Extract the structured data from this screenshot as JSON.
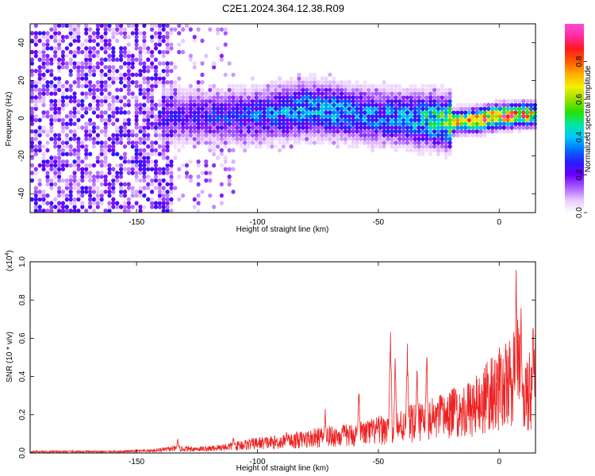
{
  "title": "C2E1.2024.364.12.38.R09",
  "chart_data": [
    {
      "type": "heatmap",
      "xlabel": "Height of straight line (km)",
      "ylabel": "Frequency (Hz)",
      "xlim": [
        -194,
        15
      ],
      "ylim": [
        -50,
        50
      ],
      "x_ticks": [
        -150,
        -100,
        -50,
        0
      ],
      "y_ticks": [
        -40,
        -20,
        0,
        20,
        40
      ],
      "colorbar": {
        "label": "Normalized spectral amplitude",
        "range": [
          0.0,
          1.0
        ],
        "ticks": [
          "0.0",
          "0.2",
          "0.4",
          "0.6",
          "0.8"
        ],
        "colors": [
          "#ffffff",
          "#e9c8ff",
          "#a85cff",
          "#6a00ff",
          "#2a1bff",
          "#0070ff",
          "#00c8ff",
          "#00e8a0",
          "#28e000",
          "#9ae000",
          "#f5f000",
          "#ffae00",
          "#ff5a00",
          "#ff1a1a",
          "#ff2aa0",
          "#ff4bd6"
        ]
      },
      "ridge": {
        "description_values": "dominant energy near 0 Hz, strongest from -15 to 10 km",
        "x": [
          -130,
          -110,
          -90,
          -80,
          -70,
          -60,
          -50,
          -40,
          -30,
          -20,
          -10,
          0,
          10,
          15
        ],
        "center_freq": [
          0,
          0,
          2,
          4,
          3,
          1,
          0,
          -1,
          -2,
          -3,
          -2,
          0,
          1,
          1
        ],
        "peak_amplitude": [
          0.25,
          0.3,
          0.4,
          0.45,
          0.42,
          0.4,
          0.38,
          0.42,
          0.5,
          0.7,
          0.9,
          0.95,
          0.85,
          0.6
        ]
      }
    },
    {
      "type": "line",
      "xlabel": "Height of straight line (km)",
      "ylabel": "SNR (10 * v/v)",
      "y_scale_label": "(x10",
      "y_scale_exponent": "4",
      "xlim": [
        -194,
        15
      ],
      "ylim": [
        0,
        1.0
      ],
      "x_ticks": [
        -150,
        -100,
        -50,
        0
      ],
      "y_ticks": [
        "0.0",
        "0.2",
        "0.4",
        "0.6",
        "0.8",
        "1.0"
      ],
      "color": "#ee2222",
      "envelope": {
        "x": [
          -194,
          -160,
          -145,
          -135,
          -120,
          -110,
          -100,
          -90,
          -80,
          -70,
          -60,
          -50,
          -40,
          -30,
          -20,
          -10,
          -5,
          0,
          5,
          8,
          10,
          12,
          15
        ],
        "y": [
          0.01,
          0.01,
          0.015,
          0.03,
          0.03,
          0.05,
          0.07,
          0.08,
          0.1,
          0.12,
          0.13,
          0.16,
          0.2,
          0.23,
          0.28,
          0.33,
          0.4,
          0.46,
          0.5,
          0.6,
          0.35,
          0.45,
          0.55
        ]
      },
      "spikes": [
        {
          "x": -133,
          "y": 0.08
        },
        {
          "x": -110,
          "y": 0.1
        },
        {
          "x": -88,
          "y": 0.14
        },
        {
          "x": -72,
          "y": 0.25
        },
        {
          "x": -58,
          "y": 0.38
        },
        {
          "x": -45,
          "y": 0.76
        },
        {
          "x": -43,
          "y": 0.55
        },
        {
          "x": -38,
          "y": 0.66
        },
        {
          "x": -34,
          "y": 0.5
        },
        {
          "x": -30,
          "y": 0.62
        },
        {
          "x": -18,
          "y": 0.42
        },
        {
          "x": 7,
          "y": 1.02
        },
        {
          "x": 9,
          "y": 0.85
        },
        {
          "x": 14,
          "y": 0.72
        }
      ]
    }
  ]
}
